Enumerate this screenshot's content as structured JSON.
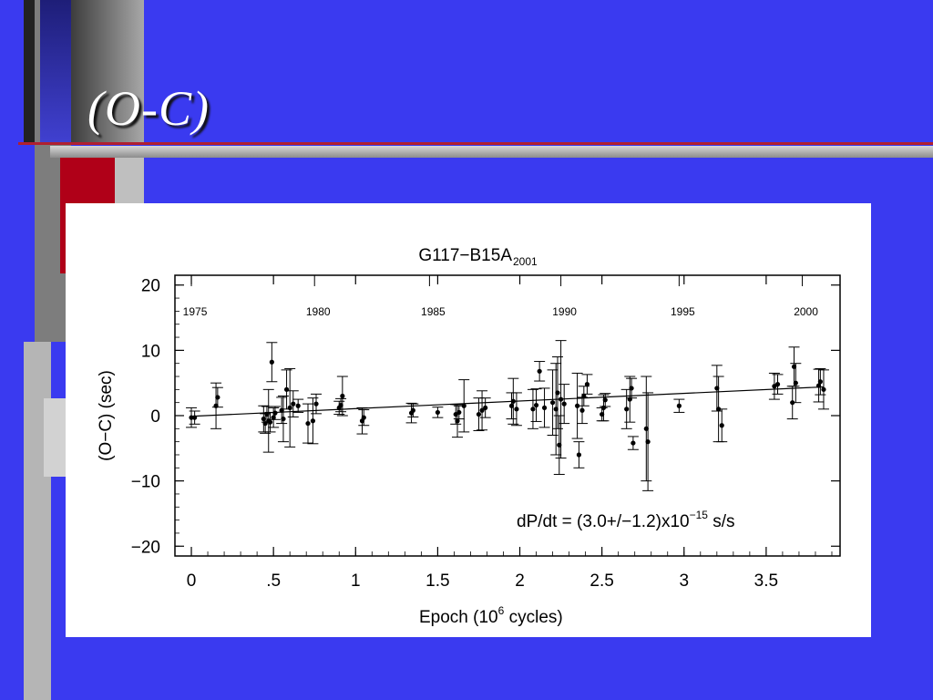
{
  "slide": {
    "title": "(O-C)"
  },
  "chart_data": {
    "type": "scatter",
    "title": "G117−B15A",
    "title_subscript": "2001",
    "xlabel_prefix": "Epoch (10",
    "xlabel_exponent": "6",
    "xlabel_suffix": " cycles)",
    "ylabel": "(O−C) (sec)",
    "xlim": [
      -0.1,
      3.95
    ],
    "ylim": [
      -21.5,
      21.5
    ],
    "x_ticks": [
      {
        "value": 0,
        "label": "0"
      },
      {
        "value": 0.5,
        "label": ".5"
      },
      {
        "value": 1,
        "label": "1"
      },
      {
        "value": 1.5,
        "label": "1.5"
      },
      {
        "value": 2,
        "label": "2"
      },
      {
        "value": 2.5,
        "label": "2.5"
      },
      {
        "value": 3,
        "label": "3"
      },
      {
        "value": 3.5,
        "label": "3.5"
      }
    ],
    "y_ticks": [
      {
        "value": 20,
        "label": "20"
      },
      {
        "value": 10,
        "label": "10"
      },
      {
        "value": 0,
        "label": "0"
      },
      {
        "value": -10,
        "label": "−10"
      },
      {
        "value": -20,
        "label": "−20"
      }
    ],
    "year_ticks": [
      {
        "x": 0.0,
        "label": "1975"
      },
      {
        "x": 0.75,
        "label": "1980"
      },
      {
        "x": 1.45,
        "label": "1985"
      },
      {
        "x": 2.25,
        "label": "1990"
      },
      {
        "x": 2.97,
        "label": "1995"
      },
      {
        "x": 3.72,
        "label": "2000"
      }
    ],
    "annotation": {
      "prefix": "dP/dt = (3.0+/−1.2)x10",
      "exponent": "−15",
      "suffix": " s/s"
    },
    "fit_line": {
      "x": [
        0,
        3.85
      ],
      "y": [
        -0.1,
        4.4
      ]
    },
    "points": [
      {
        "x": 0.0,
        "y": -0.3,
        "err": 1.5
      },
      {
        "x": 0.02,
        "y": -0.3,
        "err": 1.0
      },
      {
        "x": 0.15,
        "y": 1.5,
        "err": 3.5
      },
      {
        "x": 0.16,
        "y": 2.8,
        "err": 1.5
      },
      {
        "x": 0.44,
        "y": -0.5,
        "err": 2.0
      },
      {
        "x": 0.45,
        "y": -1.2,
        "err": 1.5
      },
      {
        "x": 0.46,
        "y": 0.2,
        "err": 1.2
      },
      {
        "x": 0.47,
        "y": -0.8,
        "err": 4.8
      },
      {
        "x": 0.48,
        "y": -1.0,
        "err": 1.5
      },
      {
        "x": 0.49,
        "y": 8.2,
        "err": 3.0
      },
      {
        "x": 0.5,
        "y": -0.3,
        "err": 1.5
      },
      {
        "x": 0.51,
        "y": 0.4,
        "err": 1.0
      },
      {
        "x": 0.55,
        "y": 0.8,
        "err": 2.0
      },
      {
        "x": 0.56,
        "y": -0.5,
        "err": 3.5
      },
      {
        "x": 0.58,
        "y": 4.0,
        "err": 3.0
      },
      {
        "x": 0.6,
        "y": 1.2,
        "err": 6.0
      },
      {
        "x": 0.62,
        "y": 1.8,
        "err": 2.0
      },
      {
        "x": 0.65,
        "y": 1.5,
        "err": 1.0
      },
      {
        "x": 0.71,
        "y": -1.2,
        "err": 3.0
      },
      {
        "x": 0.74,
        "y": -0.8,
        "err": 3.5
      },
      {
        "x": 0.76,
        "y": 1.8,
        "err": 1.5
      },
      {
        "x": 0.9,
        "y": 1.2,
        "err": 1.0
      },
      {
        "x": 0.91,
        "y": 1.6,
        "err": 1.0
      },
      {
        "x": 0.92,
        "y": 3.0,
        "err": 3.0
      },
      {
        "x": 1.04,
        "y": -0.8,
        "err": 2.0
      },
      {
        "x": 1.05,
        "y": -0.3,
        "err": 1.2
      },
      {
        "x": 1.34,
        "y": 0.4,
        "err": 1.5
      },
      {
        "x": 1.35,
        "y": 0.8,
        "err": 1.0
      },
      {
        "x": 1.5,
        "y": 0.5,
        "err": 0.8
      },
      {
        "x": 1.61,
        "y": 0.2,
        "err": 1.5
      },
      {
        "x": 1.62,
        "y": -0.8,
        "err": 2.5
      },
      {
        "x": 1.63,
        "y": 0.5,
        "err": 1.0
      },
      {
        "x": 1.66,
        "y": 1.5,
        "err": 4.0
      },
      {
        "x": 1.75,
        "y": 0.2,
        "err": 2.5
      },
      {
        "x": 1.77,
        "y": 0.8,
        "err": 3.0
      },
      {
        "x": 1.79,
        "y": 1.2,
        "err": 1.5
      },
      {
        "x": 1.95,
        "y": 1.5,
        "err": 2.0
      },
      {
        "x": 1.96,
        "y": 2.2,
        "err": 3.5
      },
      {
        "x": 1.98,
        "y": 1.0,
        "err": 2.5
      },
      {
        "x": 2.08,
        "y": 1.0,
        "err": 3.0
      },
      {
        "x": 2.1,
        "y": 1.6,
        "err": 2.5
      },
      {
        "x": 2.12,
        "y": 6.8,
        "err": 1.5
      },
      {
        "x": 2.15,
        "y": 1.2,
        "err": 3.0
      },
      {
        "x": 2.2,
        "y": 2.0,
        "err": 5.0
      },
      {
        "x": 2.22,
        "y": 1.0,
        "err": 7.0
      },
      {
        "x": 2.23,
        "y": 3.5,
        "err": 5.5
      },
      {
        "x": 2.24,
        "y": -4.5,
        "err": 4.5
      },
      {
        "x": 2.25,
        "y": 2.5,
        "err": 9.0
      },
      {
        "x": 2.27,
        "y": 1.8,
        "err": 3.0
      },
      {
        "x": 2.35,
        "y": 1.5,
        "err": 5.0
      },
      {
        "x": 2.36,
        "y": -6.0,
        "err": 2.0
      },
      {
        "x": 2.38,
        "y": 0.8,
        "err": 2.0
      },
      {
        "x": 2.39,
        "y": 3.0,
        "err": 1.5
      },
      {
        "x": 2.41,
        "y": 4.8,
        "err": 1.5
      },
      {
        "x": 2.5,
        "y": 0.2,
        "err": 1.0
      },
      {
        "x": 2.51,
        "y": 1.2,
        "err": 2.0
      },
      {
        "x": 2.52,
        "y": 2.4,
        "err": 1.0
      },
      {
        "x": 2.65,
        "y": 1.0,
        "err": 3.0
      },
      {
        "x": 2.67,
        "y": 2.5,
        "err": 3.5
      },
      {
        "x": 2.68,
        "y": 4.2,
        "err": 1.5
      },
      {
        "x": 2.69,
        "y": -4.2,
        "err": 1.0
      },
      {
        "x": 2.77,
        "y": -2.0,
        "err": 8.0
      },
      {
        "x": 2.78,
        "y": -4.0,
        "err": 7.5
      },
      {
        "x": 2.97,
        "y": 1.5,
        "err": 1.0
      },
      {
        "x": 3.2,
        "y": 4.2,
        "err": 3.5
      },
      {
        "x": 3.21,
        "y": 1.0,
        "err": 5.0
      },
      {
        "x": 3.23,
        "y": -1.5,
        "err": 2.5
      },
      {
        "x": 3.55,
        "y": 4.5,
        "err": 2.0
      },
      {
        "x": 3.57,
        "y": 4.8,
        "err": 1.5
      },
      {
        "x": 3.66,
        "y": 2.0,
        "err": 2.5
      },
      {
        "x": 3.67,
        "y": 7.5,
        "err": 3.0
      },
      {
        "x": 3.68,
        "y": 5.0,
        "err": 3.0
      },
      {
        "x": 3.82,
        "y": 4.6,
        "err": 2.5
      },
      {
        "x": 3.83,
        "y": 5.2,
        "err": 2.0
      },
      {
        "x": 3.85,
        "y": 4.0,
        "err": 3.0
      }
    ]
  }
}
